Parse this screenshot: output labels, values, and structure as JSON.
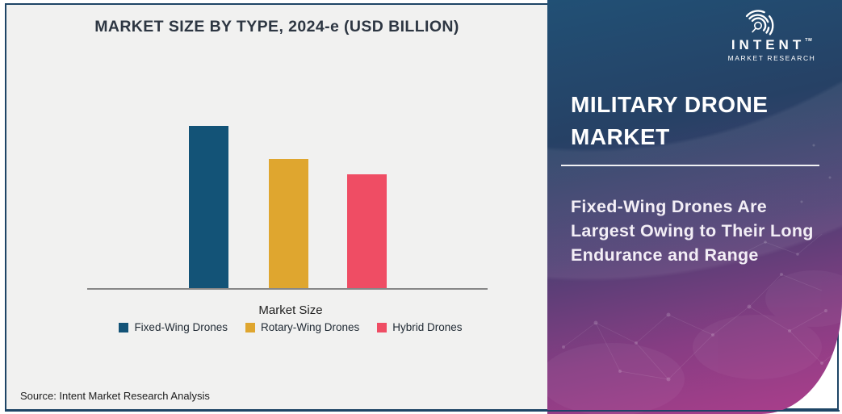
{
  "page": {
    "background": "#ffffff",
    "frame_border_color": "#1e4566",
    "chart_background": "#f1f1f0"
  },
  "chart": {
    "title": "MARKET SIZE BY TYPE, 2024-e (USD BILLION)",
    "x_axis_label": "Market Size",
    "source_note": "Source: Intent Market Research Analysis"
  },
  "chart_data": {
    "type": "bar",
    "title": "MARKET SIZE BY TYPE, 2024-e (USD BILLION)",
    "categories": [
      "Fixed-Wing Drones",
      "Rotary-Wing Drones",
      "Hybrid Drones"
    ],
    "values": [
      201,
      160,
      141
    ],
    "value_note": "No numeric axis or data labels shown; values are relative bar heights in pixels (Fixed-Wing largest, then Rotary-Wing, then Hybrid).",
    "colors": [
      "#135377",
      "#dfa62f",
      "#ef4d64"
    ],
    "xlabel": "Market Size",
    "ylabel": "",
    "grid": false,
    "legend_position": "bottom",
    "axis_line_color": "#878787"
  },
  "panel": {
    "title_lines": [
      "MILITARY DRONE",
      "MARKET"
    ],
    "title_full": "MILITARY DRONE MARKET",
    "description_lines": [
      "Fixed-Wing Drones Are",
      "Largest Owing to Their Long",
      "Endurance and Range"
    ],
    "description_full": "Fixed-Wing Drones Are Largest Owing to Their Long Endurance and Range",
    "gradient_colors": [
      "#215075",
      "#264165",
      "#4e3f73",
      "#863d83",
      "#ad3e8c"
    ],
    "logo": {
      "name": "INTENT",
      "tm": "TM",
      "sub": "MARKET RESEARCH"
    }
  }
}
